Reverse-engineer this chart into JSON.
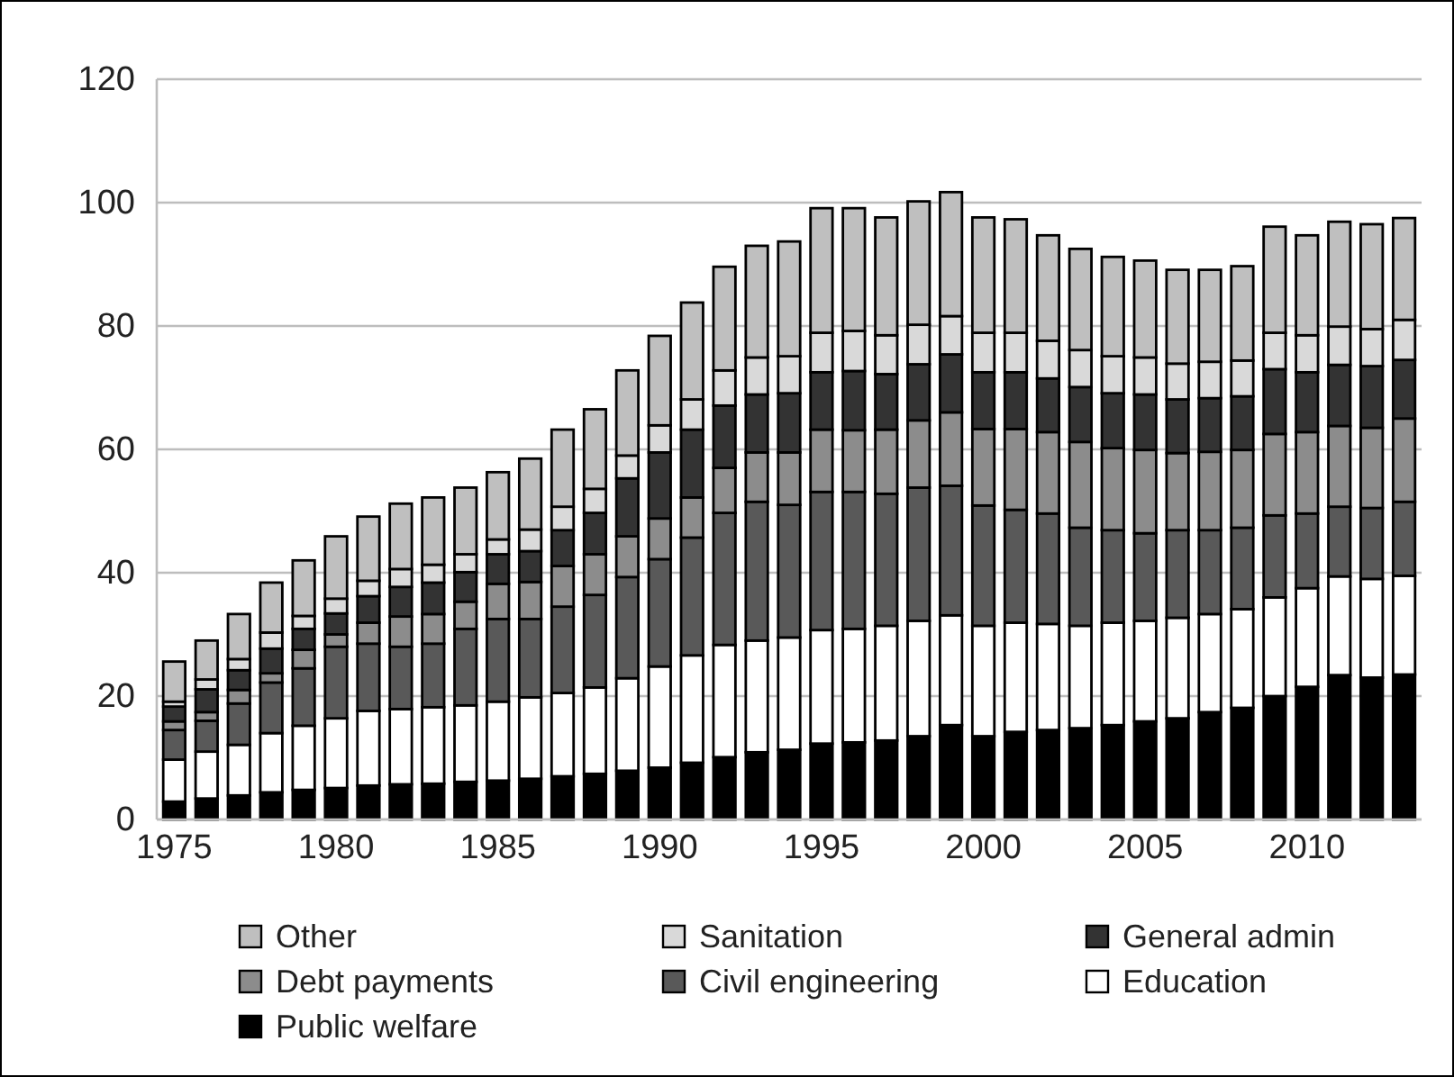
{
  "chart_data": {
    "type": "bar",
    "stacked": true,
    "grid": "y",
    "legend": "bottom",
    "categories": [
      "1975",
      null,
      null,
      null,
      null,
      "1980",
      null,
      null,
      null,
      null,
      "1985",
      null,
      null,
      null,
      null,
      "1990",
      null,
      null,
      null,
      null,
      "1995",
      null,
      null,
      null,
      null,
      "2000",
      null,
      null,
      null,
      null,
      "2005",
      null,
      null,
      null,
      null,
      "2010",
      null,
      null,
      null
    ],
    "ylim": [
      0,
      120
    ],
    "yticks": [
      0,
      20,
      40,
      60,
      80,
      100,
      120
    ],
    "series": [
      {
        "name": "Public welfare",
        "color": "#000000",
        "values": [
          2.9,
          3.4,
          3.9,
          4.4,
          4.8,
          5.1,
          5.5,
          5.7,
          5.8,
          6.1,
          6.3,
          6.6,
          7.0,
          7.4,
          7.9,
          8.4,
          9.2,
          10.1,
          10.9,
          11.3,
          12.3,
          12.5,
          12.8,
          13.5,
          15.3,
          13.5,
          14.2,
          14.5,
          14.8,
          15.3,
          15.9,
          16.4,
          17.4,
          18.1,
          20.0,
          21.5,
          23.4,
          23.0,
          23.5
        ]
      },
      {
        "name": "Education",
        "color": "#ffffff",
        "values": [
          6.8,
          7.6,
          8.2,
          9.6,
          10.4,
          11.3,
          12.1,
          12.2,
          12.4,
          12.4,
          12.8,
          13.2,
          13.5,
          14.0,
          15.0,
          16.4,
          17.4,
          18.2,
          18.1,
          18.2,
          18.4,
          18.4,
          18.6,
          18.7,
          17.8,
          17.9,
          17.7,
          17.2,
          16.6,
          16.6,
          16.3,
          16.3,
          15.9,
          16.0,
          16.0,
          16.0,
          16.0,
          16.0,
          16.0
        ]
      },
      {
        "name": "Civil engineering",
        "color": "#595959",
        "values": [
          4.8,
          5.0,
          6.7,
          8.2,
          9.3,
          11.6,
          10.9,
          10.1,
          10.3,
          12.4,
          13.4,
          12.7,
          14.0,
          15.0,
          16.4,
          17.4,
          19.1,
          21.4,
          22.5,
          21.5,
          22.4,
          22.2,
          21.4,
          21.6,
          21.0,
          19.5,
          18.3,
          17.9,
          15.9,
          15.0,
          14.2,
          14.2,
          13.6,
          13.2,
          13.3,
          12.1,
          11.3,
          11.5,
          12.0
        ]
      },
      {
        "name": "Debt payments",
        "color": "#8c8c8c",
        "values": [
          1.4,
          1.4,
          2.2,
          1.5,
          3.0,
          2.0,
          3.4,
          4.9,
          4.8,
          4.4,
          5.7,
          6.0,
          6.6,
          6.6,
          6.6,
          6.6,
          6.5,
          7.3,
          8.0,
          8.5,
          10.1,
          10.0,
          10.4,
          10.9,
          11.9,
          12.4,
          13.1,
          13.2,
          13.9,
          13.3,
          13.5,
          12.5,
          12.7,
          12.6,
          13.2,
          13.2,
          13.1,
          13.0,
          13.5
        ]
      },
      {
        "name": "General admin",
        "color": "#333333",
        "values": [
          2.4,
          3.7,
          3.2,
          4.0,
          3.4,
          3.4,
          4.3,
          4.8,
          5.1,
          4.8,
          4.8,
          5.0,
          5.8,
          6.7,
          9.4,
          10.7,
          11.0,
          10.1,
          9.4,
          9.6,
          9.3,
          9.6,
          9.0,
          9.1,
          9.4,
          9.2,
          9.2,
          8.7,
          8.9,
          8.9,
          9.0,
          8.7,
          8.7,
          8.7,
          10.5,
          9.7,
          9.9,
          10.0,
          9.5
        ]
      },
      {
        "name": "Sanitation",
        "color": "#d9d9d9",
        "values": [
          0.8,
          1.6,
          1.8,
          2.6,
          2.1,
          2.4,
          2.5,
          2.9,
          2.9,
          2.9,
          2.4,
          3.5,
          3.8,
          3.9,
          3.7,
          4.4,
          4.9,
          5.7,
          6.0,
          6.0,
          6.4,
          6.5,
          6.3,
          6.4,
          6.2,
          6.4,
          6.4,
          6.1,
          6.0,
          6.0,
          6.0,
          5.8,
          5.9,
          5.8,
          5.9,
          6.0,
          6.2,
          6.0,
          6.5
        ]
      },
      {
        "name": "Other",
        "color": "#bfbfbf",
        "values": [
          6.5,
          6.3,
          7.3,
          8.1,
          9.0,
          10.1,
          10.4,
          10.6,
          10.9,
          10.8,
          10.9,
          11.5,
          12.5,
          12.9,
          13.8,
          14.5,
          15.7,
          16.8,
          18.1,
          18.6,
          20.2,
          19.9,
          19.1,
          20.0,
          20.1,
          18.7,
          18.4,
          17.1,
          16.4,
          16.1,
          15.7,
          15.2,
          14.9,
          15.3,
          17.2,
          16.2,
          17.0,
          17.0,
          16.5
        ]
      }
    ]
  }
}
